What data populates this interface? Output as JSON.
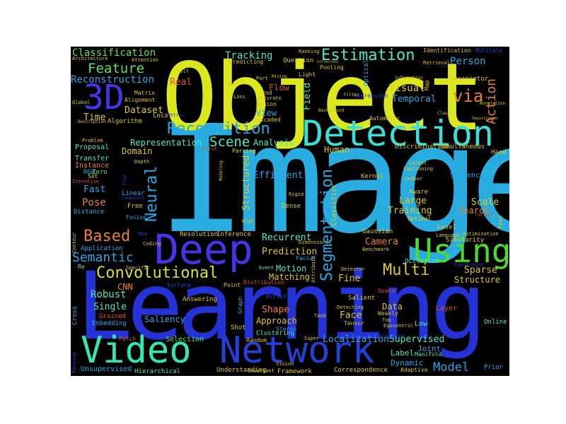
{
  "panel_background": "#000000",
  "page_background": "#ffffff",
  "words": {
    "image": "Image",
    "object": "Object",
    "learning": "Learning",
    "detection": "Detection",
    "deep": "Deep",
    "video": "Video",
    "network": "Network",
    "using": "Using",
    "three_d": "3D",
    "recognition": "Recognition",
    "feature": "Feature",
    "estimation": "Estimation",
    "convolutional": "Convolutional",
    "semantic": "Semantic",
    "segmentation": "Segmentation",
    "multi": "Multi",
    "based": "Based",
    "scene": "Scene",
    "neural": "Neural",
    "via": "via",
    "action": "Action",
    "model": "Model",
    "classification": "Classification",
    "reconstruction": "Reconstruction",
    "tracking": "Tracking",
    "person": "Person",
    "visual": "Visual",
    "temporal": "Temporal",
    "face": "Face",
    "supervised": "Supervised",
    "localization": "Localization",
    "scale": "Scale",
    "pose": "Pose",
    "large": "Large",
    "training": "Training",
    "fast": "Fast",
    "robust": "Robust",
    "shape": "Shape",
    "human": "Human",
    "camera": "Camera",
    "efficient": "Efficient",
    "prediction": "Prediction",
    "recurrent": "Recurrent",
    "fine": "Fine",
    "data": "Data",
    "structure": "Structure",
    "sparse": "Sparse",
    "dataset": "Dataset",
    "time": "Time",
    "real": "Real",
    "flow": "Flow",
    "view": "View",
    "analysis": "Analysis",
    "representation": "Representation",
    "domain": "Domain",
    "proposal": "Proposal",
    "transfer": "Transfer",
    "instance": "Instance",
    "single": "Single",
    "saliency": "Saliency",
    "cnn": "CNN",
    "motion": "Motion",
    "matching": "Matching",
    "approach": "Approach",
    "joint": "Joint",
    "dynamic": "Dynamic",
    "label": "Label",
    "structured": "Structured",
    "search": "Search",
    "field": "Field",
    "question": "Question",
    "algorithm": "Algorithm",
    "alignment": "Alignment",
    "matrix": "Matrix",
    "attention": "Attention",
    "architecture": "Architecture",
    "self": "Self",
    "global": "Global",
    "description": "Description",
    "problem": "Problem",
    "rgb": "RGB",
    "zero": "Zero",
    "iterative": "Iterative",
    "set": "Set",
    "distance": "Distance",
    "free": "Free",
    "linear": "Linear",
    "fusion": "Fusion",
    "contour": "Contour",
    "application": "Application",
    "re": "Re",
    "specific": "Specific",
    "surface": "Surface",
    "grained": "Grained",
    "embedding": "Embedding",
    "cross": "Cross",
    "patch": "Patch",
    "selection": "Selection",
    "unsupervised": "Unsupervised",
    "hierarchical": "Hierarchical",
    "understanding": "Understanding",
    "framework": "Framework",
    "invariant": "Invariant",
    "correspondence": "Correspondence",
    "adaptive": "Adaptive",
    "prior": "Prior",
    "online": "Online",
    "low": "Low",
    "layer": "Layer",
    "manifold": "Manifold",
    "graph": "Graph",
    "shot": "Shot",
    "random": "Random",
    "stereo": "Stereo",
    "clustering": "Clustering",
    "answering": "Answering",
    "point": "Point",
    "event": "Event",
    "distribution": "Distribution",
    "facial": "Facial",
    "occlusion": "Occlusion",
    "similarity": "Similarity",
    "level": "Level",
    "optimal": "Optimal",
    "gaussian": "Gaussian",
    "kernel": "Kernel",
    "dense": "Dense",
    "rigid": "Rigid",
    "indoor": "Indoor",
    "captioning": "Captioning",
    "latent": "Latent",
    "sequence": "Sequence",
    "aware": "Aware",
    "discriminative": "Discriminative",
    "simultaneous": "Simultaneous",
    "hand": "Hand",
    "automatic": "Automatic",
    "background": "Background",
    "descriptor": "Descriptor",
    "map": "Map",
    "retrieval": "Retrieval",
    "identification": "Identification",
    "multiple": "Multiple",
    "ranking": "Ranking",
    "optical": "Optical",
    "pooling": "Pooling",
    "light": "Light",
    "predicting": "Predicting",
    "part": "Part",
    "mining": "Mining",
    "end": "End",
    "accurate": "Accurate",
    "region": "Region",
    "loss": "Loss",
    "wild": "Wild",
    "cascaded": "Cascaded",
    "parsing": "Parsing",
    "depth": "Depth",
    "local": "Local",
    "metric": "Metric",
    "resolution": "Resolution",
    "inference": "Inference",
    "high": "High",
    "non": "Non",
    "coding": "Coding",
    "dimensional": "Dimensional",
    "benchmark": "Benchmark",
    "language": "Language",
    "optimization": "Optimization",
    "text": "Text",
    "context": "Context",
    "constraint": "Constraint",
    "salient": "Salient",
    "detecting": "Detecting",
    "tensor": "Tensor",
    "weakly": "Weakly",
    "space": "Space",
    "task": "Task",
    "activity": "Activity",
    "top": "Top",
    "vision": "Vision",
    "super": "Super",
    "consistency": "Consistency",
    "attribute": "Attribute",
    "detector": "Detector",
    "information": "Information",
    "collection": "Collection",
    "egocentric": "Egocentric",
    "first": "First",
    "modeling": "Modeling",
    "annotation": "Annotation",
    "registration": "Registration",
    "class": "Class",
    "component": "Component",
    "regression": "Regression",
    "filter": "Filter",
    "classifier": "Classifier"
  }
}
